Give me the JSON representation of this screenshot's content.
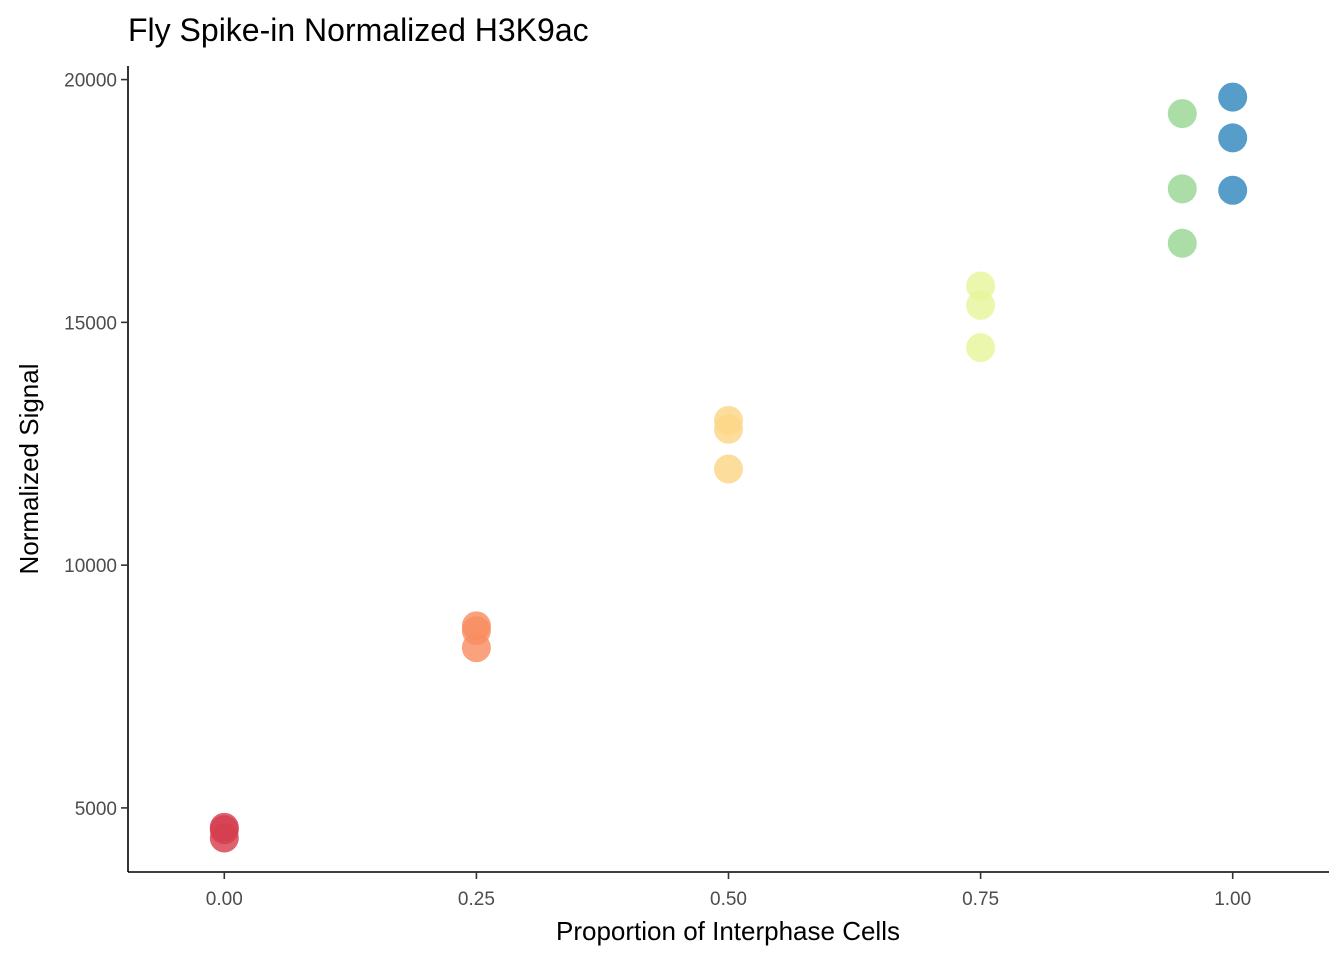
{
  "chart_data": {
    "type": "scatter",
    "title": "Fly Spike-in Normalized H3K9ac",
    "xlabel": "Proportion of Interphase Cells",
    "ylabel": "Normalized Signal",
    "xlim": [
      -0.0955,
      1.0955
    ],
    "ylim": [
      3680,
      20280
    ],
    "grid": false,
    "x_ticks": [
      0,
      0.25,
      0.5,
      0.75,
      1
    ],
    "x_tick_labels": [
      "0.00",
      "0.25",
      "0.50",
      "0.75",
      "1.00"
    ],
    "y_ticks": [
      5000,
      10000,
      15000,
      20000
    ],
    "y_tick_labels": [
      "5000",
      "10000",
      "15000",
      "20000"
    ],
    "series": [
      {
        "color": "#d53e4f",
        "points": [
          [
            0,
            4600
          ],
          [
            0,
            4550
          ],
          [
            0,
            4380
          ]
        ]
      },
      {
        "color": "#f98d62",
        "points": [
          [
            0.25,
            8750
          ],
          [
            0.25,
            8650
          ],
          [
            0.25,
            8300
          ]
        ]
      },
      {
        "color": "#fdd586",
        "points": [
          [
            0.5,
            12980
          ],
          [
            0.5,
            12800
          ],
          [
            0.5,
            11980
          ]
        ]
      },
      {
        "color": "#e6f59b",
        "points": [
          [
            0.75,
            15750
          ],
          [
            0.75,
            15350
          ],
          [
            0.75,
            14480
          ]
        ]
      },
      {
        "color": "#99d594",
        "points": [
          [
            0.95,
            19300
          ],
          [
            0.95,
            17750
          ],
          [
            0.95,
            16630
          ]
        ]
      },
      {
        "color": "#3288bd",
        "points": [
          [
            1,
            19640
          ],
          [
            1,
            18800
          ],
          [
            1,
            17720
          ]
        ]
      }
    ]
  }
}
